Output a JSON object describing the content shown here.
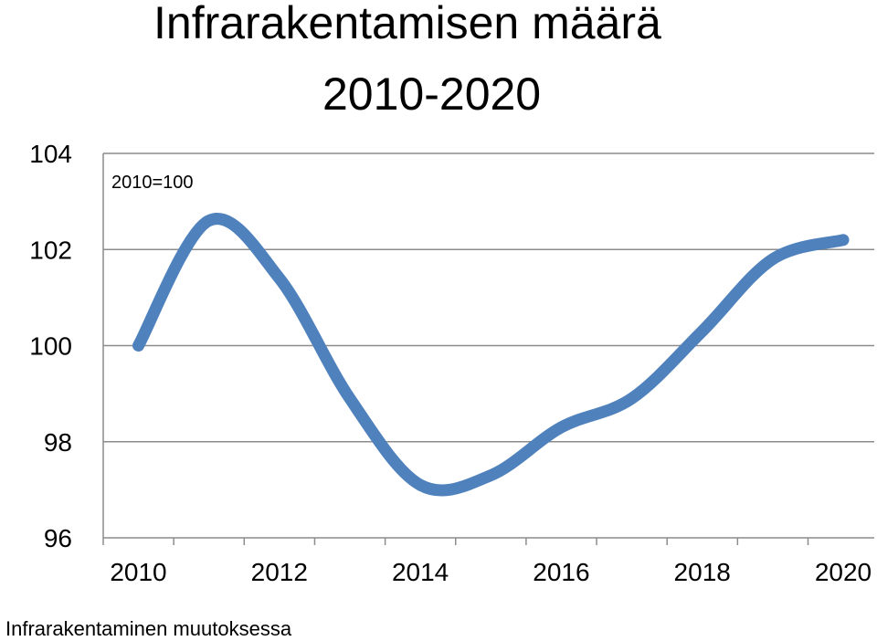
{
  "chart_data": {
    "type": "line",
    "title_line1": "Infrarakentamisen määrä",
    "title_line2": "2010-2020",
    "annotation": "2010=100",
    "x": [
      2010,
      2011,
      2012,
      2013,
      2014,
      2015,
      2016,
      2017,
      2018,
      2019,
      2020
    ],
    "x_tick_labels": [
      "2010",
      "2012",
      "2014",
      "2016",
      "2018",
      "2020"
    ],
    "y_tick_labels": [
      "96",
      "98",
      "100",
      "102",
      "104"
    ],
    "ylim": [
      96,
      104
    ],
    "grid": true,
    "series": [
      {
        "values": [
          100.0,
          102.6,
          101.4,
          98.9,
          97.1,
          97.3,
          98.3,
          98.9,
          100.3,
          101.8,
          102.2
        ],
        "color": "#4F81BD"
      }
    ]
  },
  "footer": {
    "label": "Infrarakentaminen muutoksessa"
  }
}
